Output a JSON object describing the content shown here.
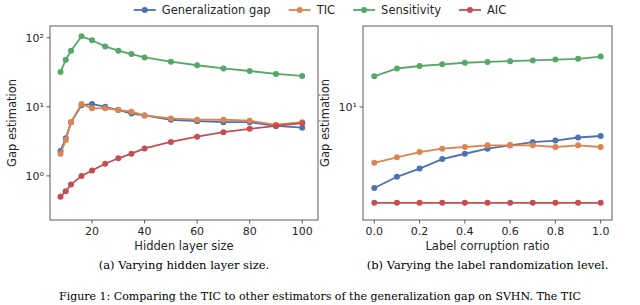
{
  "chart_data": [
    {
      "type": "line",
      "title": "(a) Varying hidden layer size.",
      "x_label": "Hidden layer size",
      "y_label": "Gap estimation",
      "log": "y",
      "grid": false,
      "legend": "top",
      "x": [
        8,
        10,
        12,
        16,
        20,
        25,
        30,
        35,
        40,
        50,
        60,
        70,
        80,
        90,
        100
      ],
      "xlim": [
        4,
        106
      ],
      "xticks": [
        20,
        40,
        60,
        80,
        100
      ],
      "ylim": [
        0.23,
        148
      ],
      "yticks": [
        {
          "value": 1,
          "label": "10⁰"
        },
        {
          "value": 10,
          "label": "10¹"
        },
        {
          "value": 100,
          "label": "10²"
        }
      ],
      "series": [
        {
          "name": "Generalization gap",
          "color": "#4c72b0",
          "marker": "circle",
          "values": [
            2.3,
            3.5,
            6,
            10.5,
            11,
            10,
            9,
            8,
            7.5,
            6.5,
            6.2,
            6,
            6,
            5.3,
            5
          ]
        },
        {
          "name": "TIC",
          "color": "#dd8452",
          "marker": "circle",
          "values": [
            2.1,
            3.3,
            6,
            11,
            9.5,
            9.5,
            9,
            8.5,
            7.5,
            6.8,
            6.5,
            6.5,
            6.3,
            5.5,
            6
          ]
        },
        {
          "name": "Sensitivity",
          "color": "#55a868",
          "marker": "circle",
          "values": [
            32,
            48,
            65,
            105,
            92,
            75,
            65,
            58,
            52,
            45,
            40,
            36,
            33,
            30,
            28
          ]
        },
        {
          "name": "AIC",
          "color": "#c44e52",
          "marker": "circle",
          "values": [
            0.5,
            0.6,
            0.75,
            1.0,
            1.2,
            1.5,
            1.8,
            2.1,
            2.5,
            3.1,
            3.7,
            4.3,
            4.8,
            5.3,
            5.8
          ]
        }
      ]
    },
    {
      "type": "line",
      "title": "(b) Varying the label randomization level.",
      "x_label": "Label corruption ratio",
      "y_label": "Gap estimation",
      "log": "y",
      "grid": false,
      "x": [
        0.0,
        0.1,
        0.2,
        0.3,
        0.4,
        0.5,
        0.6,
        0.7,
        0.8,
        0.9,
        1.0
      ],
      "xlim": [
        -0.05,
        1.05
      ],
      "xticks": [
        {
          "value": 0,
          "label": "0.0"
        },
        0.2,
        0.4,
        0.6,
        0.8,
        {
          "value": 1,
          "label": "1.0"
        }
      ],
      "ylim": [
        3.8,
        20
      ],
      "yticks": [
        {
          "value": 10,
          "label": "10¹"
        }
      ],
      "series": [
        {
          "name": "Generalization gap",
          "color": "#4c72b0",
          "marker": "circle",
          "values": [
            5.0,
            5.5,
            5.9,
            6.4,
            6.7,
            7.0,
            7.2,
            7.4,
            7.5,
            7.7,
            7.8
          ]
        },
        {
          "name": "TIC",
          "color": "#dd8452",
          "marker": "circle",
          "values": [
            6.2,
            6.5,
            6.8,
            7.0,
            7.1,
            7.2,
            7.2,
            7.2,
            7.1,
            7.2,
            7.1
          ]
        },
        {
          "name": "Sensitivity",
          "color": "#55a868",
          "marker": "circle",
          "values": [
            13.0,
            13.9,
            14.2,
            14.4,
            14.6,
            14.7,
            14.8,
            14.9,
            15.0,
            15.1,
            15.4
          ]
        },
        {
          "name": "AIC",
          "color": "#c44e52",
          "marker": "circle",
          "values": [
            4.4,
            4.4,
            4.4,
            4.4,
            4.4,
            4.4,
            4.4,
            4.4,
            4.4,
            4.4,
            4.4
          ]
        }
      ]
    }
  ],
  "caption": "Figure 1: Comparing the TIC to other estimators of the generalization gap on SVHN. The TIC"
}
